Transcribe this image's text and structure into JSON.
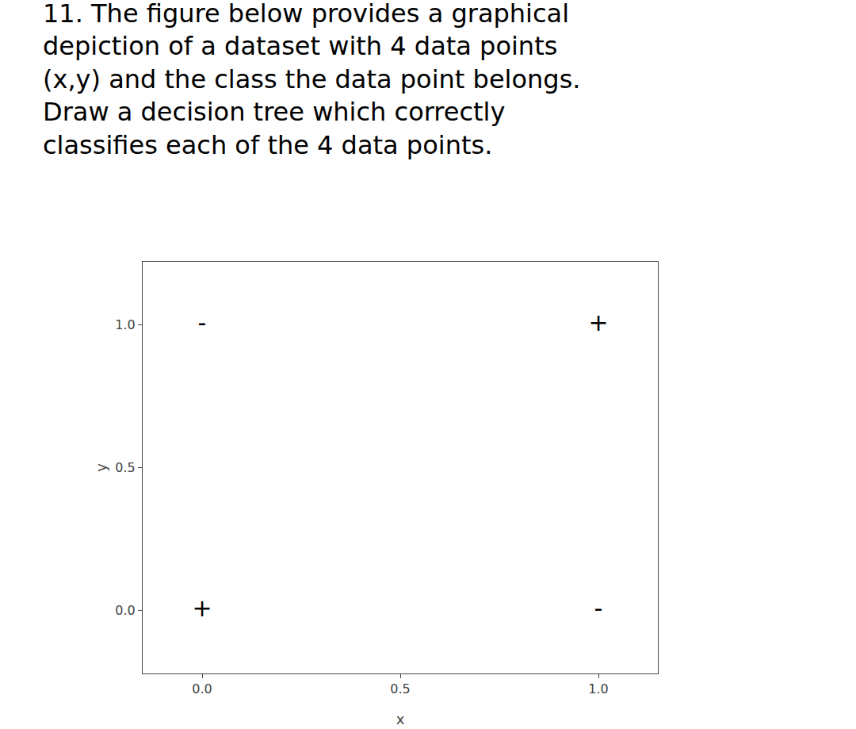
{
  "chart_data": {
    "type": "scatter",
    "title": "11. The figure below provides a graphical\ndepiction of a dataset with 4 data points\n(x,y) and the class the data point belongs.\nDraw a decision tree which correctly\nclassifies each of the 4 data points.",
    "x": [
      0.0,
      1.0,
      0.0,
      1.0
    ],
    "y": [
      1.0,
      1.0,
      0.0,
      0.0
    ],
    "labels": [
      "-",
      "+",
      "+",
      "-"
    ],
    "xlabel": "x",
    "ylabel": "y",
    "xlim": [
      -0.15,
      1.15
    ],
    "ylim": [
      -0.22,
      1.22
    ],
    "xticks": [
      {
        "value": 0.0,
        "label": "0.0"
      },
      0.5,
      {
        "value": 1.0,
        "label": "1.0"
      }
    ],
    "yticks": [
      {
        "value": 0.0,
        "label": "0.0"
      },
      0.5,
      {
        "value": 1.0,
        "label": "1.0"
      }
    ],
    "grid": false
  }
}
